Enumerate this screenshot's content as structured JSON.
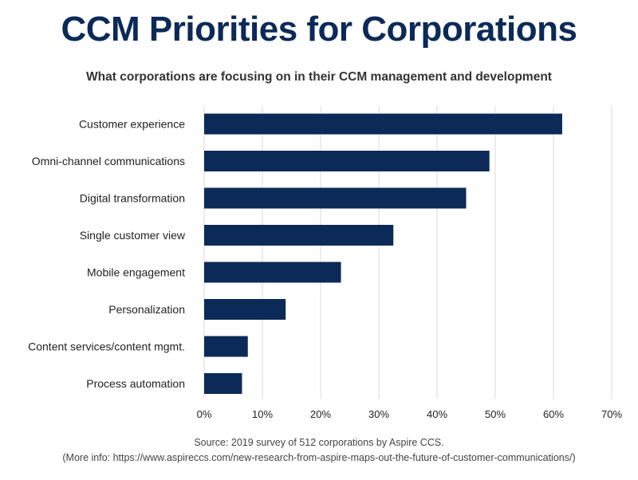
{
  "chart_data": {
    "type": "bar",
    "orientation": "horizontal",
    "title": "CCM Priorities for Corporations",
    "subtitle": "What corporations are focusing on in their CCM management and development",
    "categories": [
      "Customer experience",
      "Omni-channel communications",
      "Digital transformation",
      "Single customer view",
      "Mobile engagement",
      "Personalization",
      "Content services/content mgmt.",
      "Process automation"
    ],
    "values": [
      61.5,
      49,
      45,
      32.5,
      23.5,
      14,
      7.5,
      6.5
    ],
    "xlim": [
      0,
      70
    ],
    "xticks": [
      0,
      10,
      20,
      30,
      40,
      50,
      60,
      70
    ],
    "xtick_labels": [
      "0%",
      "10%",
      "20%",
      "30%",
      "40%",
      "50%",
      "60%",
      "70%"
    ],
    "grid": true,
    "bar_color": "#0c2a57"
  },
  "source": {
    "line1": "Source: 2019 survey of 512 corporations by Aspire CCS.",
    "line2": "(More info: https://www.aspireccs.com/new-research-from-aspire-maps-out-the-future-of-customer-communications/)"
  }
}
